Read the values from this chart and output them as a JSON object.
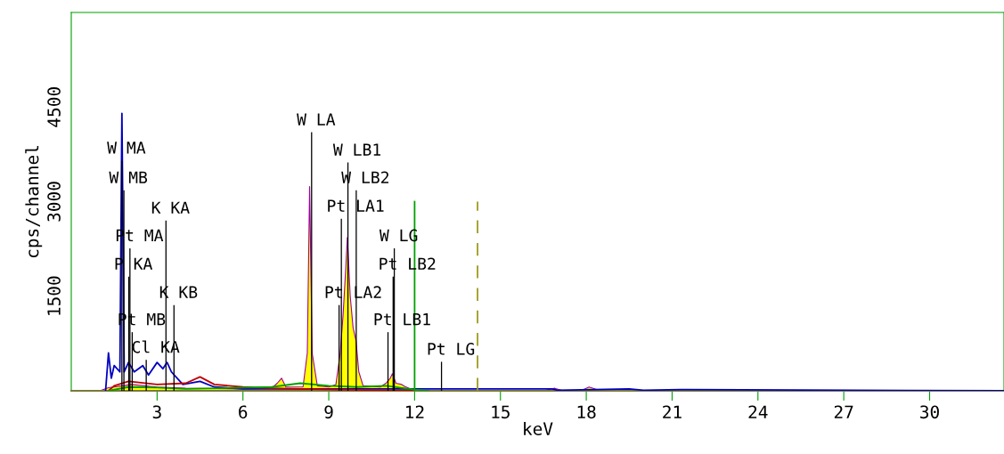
{
  "chart_data": {
    "type": "line",
    "xlabel": "keV",
    "ylabel": "cps/channel",
    "xlim": [
      0,
      32.6
    ],
    "xticks": [
      3,
      6,
      9,
      12,
      15,
      18,
      21,
      24,
      27,
      30
    ],
    "ylim": [
      0,
      6000
    ],
    "yticks": [
      1500,
      3000,
      4500
    ],
    "grid": false,
    "legend": false,
    "marker": "none",
    "series": [
      {
        "type": "area",
        "color": "#ffff00",
        "x": [
          0,
          1.0,
          1.3,
          1.8,
          2.1,
          3.0,
          4.0,
          6.0,
          7.0,
          7.2,
          7.35,
          7.5,
          8.1,
          8.25,
          8.33,
          8.42,
          8.6,
          9.0,
          9.25,
          9.4,
          9.5,
          9.6,
          9.65,
          9.75,
          9.85,
          9.95,
          10.05,
          10.2,
          10.8,
          11.0,
          11.15,
          11.22,
          11.35,
          11.55,
          11.65,
          11.9,
          12.2,
          16.5,
          16.9,
          17.2,
          17.8,
          18.1,
          18.5,
          32.6
        ],
        "values": [
          0,
          0,
          50,
          80,
          100,
          60,
          40,
          30,
          40,
          120,
          200,
          60,
          60,
          600,
          3240,
          600,
          80,
          60,
          100,
          600,
          1200,
          2000,
          2430,
          1500,
          1000,
          800,
          300,
          80,
          60,
          120,
          200,
          270,
          120,
          100,
          70,
          20,
          0,
          0,
          40,
          0,
          0,
          60,
          0,
          0
        ]
      },
      {
        "color": "#0000c0",
        "x": [
          1.2,
          1.3,
          1.4,
          1.5,
          1.7,
          1.77,
          1.85,
          2.0,
          2.2,
          2.5,
          2.7,
          3.0,
          3.2,
          3.35,
          3.5,
          3.9,
          4.5,
          5.0,
          6.0,
          16.8,
          17.0,
          19.5,
          20.0,
          21.5,
          32.6
        ],
        "values": [
          0,
          600,
          200,
          400,
          300,
          4400,
          300,
          450,
          300,
          400,
          250,
          450,
          350,
          450,
          300,
          100,
          150,
          60,
          30,
          30,
          10,
          30,
          10,
          20,
          0
        ]
      },
      {
        "color": "#c00000",
        "x": [
          1.3,
          1.5,
          2.0,
          3.0,
          4.0,
          4.5,
          5.0,
          6.0,
          7.0,
          8.0,
          12.0
        ],
        "values": [
          0,
          80,
          150,
          100,
          120,
          220,
          100,
          60,
          40,
          30,
          0
        ]
      },
      {
        "color": "#00a000",
        "x": [
          1.3,
          2.0,
          3.0,
          4.0,
          7.0,
          8.0,
          9.0,
          10.0,
          11.0,
          12.0,
          12.5
        ],
        "values": [
          0,
          60,
          50,
          30,
          60,
          120,
          80,
          60,
          80,
          20,
          0
        ]
      },
      {
        "type": "bar",
        "color": "#000000",
        "x": [
          1.77,
          1.84,
          2.01,
          2.05,
          2.13,
          2.62,
          3.31,
          3.59,
          8.4,
          9.36,
          9.44,
          9.67,
          9.96,
          11.07,
          11.25,
          11.29,
          12.94
        ],
        "values": [
          3650,
          3180,
          1810,
          2260,
          930,
          490,
          2700,
          1360,
          4100,
          1360,
          2730,
          3620,
          3180,
          930,
          1810,
          2260,
          460
        ]
      },
      {
        "color": "#00a000",
        "x": [
          12.0,
          12.0
        ],
        "values": [
          0,
          3000
        ]
      },
      {
        "color": "#a09a20",
        "line_style": "dashed",
        "x": [
          14.2,
          14.2
        ],
        "values": [
          0,
          3000
        ]
      }
    ],
    "annotations": [
      {
        "text": "W MA",
        "x": 1.77,
        "y": 3650
      },
      {
        "text": "W MB",
        "x": 1.84,
        "y": 3180
      },
      {
        "text": "K KA",
        "x": 3.31,
        "y": 2700
      },
      {
        "text": "Pt MA",
        "x": 2.05,
        "y": 2260
      },
      {
        "text": "P KA",
        "x": 2.01,
        "y": 1810
      },
      {
        "text": "K KB",
        "x": 3.59,
        "y": 1360
      },
      {
        "text": "Pt MB",
        "x": 2.13,
        "y": 930
      },
      {
        "text": "Cl KA",
        "x": 2.62,
        "y": 490
      },
      {
        "text": "W LA",
        "x": 8.4,
        "y": 4100
      },
      {
        "text": "W LB1",
        "x": 9.67,
        "y": 3620
      },
      {
        "text": "W LB2",
        "x": 9.96,
        "y": 3180
      },
      {
        "text": "Pt LA1",
        "x": 9.44,
        "y": 2730
      },
      {
        "text": "W LG",
        "x": 11.29,
        "y": 2260
      },
      {
        "text": "Pt LB2",
        "x": 11.25,
        "y": 1810
      },
      {
        "text": "Pt LA2",
        "x": 9.36,
        "y": 1360
      },
      {
        "text": "Pt LB1",
        "x": 11.07,
        "y": 930
      },
      {
        "text": "Pt LG",
        "x": 12.94,
        "y": 460
      }
    ]
  }
}
